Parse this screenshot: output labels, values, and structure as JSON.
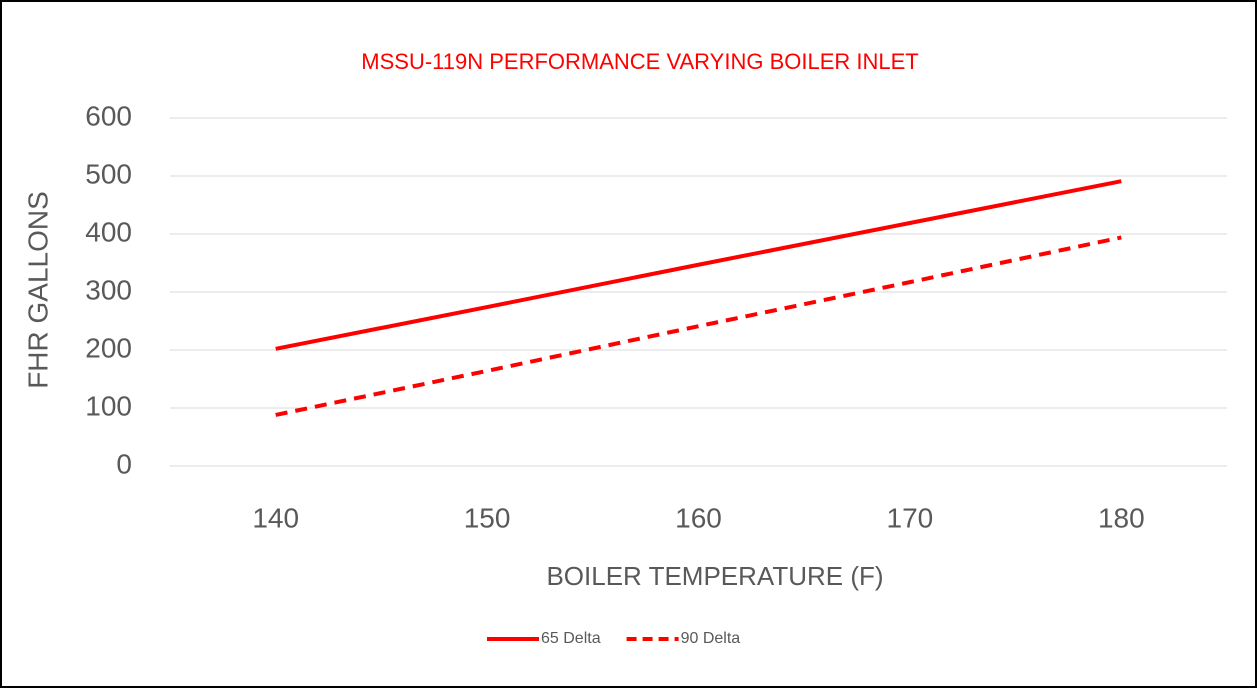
{
  "chart_data": {
    "type": "line",
    "title": "MSSU-119N PERFORMANCE VARYING BOILER INLET",
    "x_label": "BOILER TEMPERATURE (F)",
    "y_label": "FHR GALLONS",
    "categories": [
      "140",
      "150",
      "160",
      "170",
      "180"
    ],
    "series": [
      {
        "name": "65 Delta",
        "color": "#ff0000",
        "line_style": "solid",
        "values": [
          202,
          274,
          347,
          419,
          491
        ]
      },
      {
        "name": "90 Delta",
        "color": "#ff0000",
        "line_style": "dashed",
        "values": [
          88,
          164,
          241,
          317,
          394
        ]
      }
    ],
    "ylim": [
      0,
      600
    ],
    "yticks": [
      0,
      100,
      200,
      300,
      400,
      500,
      600
    ],
    "grid": true,
    "legend": "bottom"
  }
}
